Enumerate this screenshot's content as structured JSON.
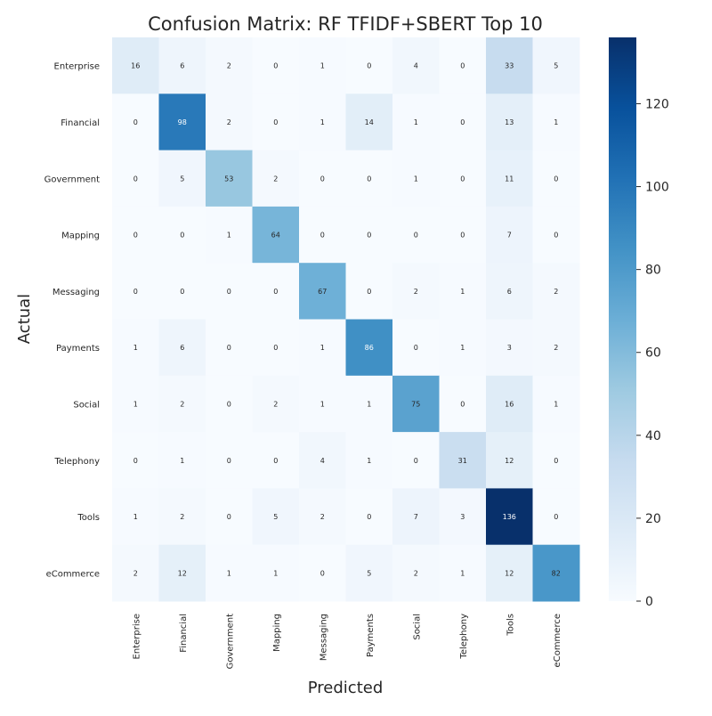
{
  "chart_data": {
    "type": "heatmap",
    "title": "Confusion Matrix: RF TFIDF+SBERT Top 10",
    "xlabel": "Predicted",
    "ylabel": "Actual",
    "x_categories": [
      "Enterprise",
      "Financial",
      "Government",
      "Mapping",
      "Messaging",
      "Payments",
      "Social",
      "Telephony",
      "Tools",
      "eCommerce"
    ],
    "y_categories": [
      "Enterprise",
      "Financial",
      "Government",
      "Mapping",
      "Messaging",
      "Payments",
      "Social",
      "Telephony",
      "Tools",
      "eCommerce"
    ],
    "values": [
      [
        16,
        6,
        2,
        0,
        1,
        0,
        4,
        0,
        33,
        5
      ],
      [
        0,
        98,
        2,
        0,
        1,
        14,
        1,
        0,
        13,
        1
      ],
      [
        0,
        5,
        53,
        2,
        0,
        0,
        1,
        0,
        11,
        0
      ],
      [
        0,
        0,
        1,
        64,
        0,
        0,
        0,
        0,
        7,
        0
      ],
      [
        0,
        0,
        0,
        0,
        67,
        0,
        2,
        1,
        6,
        2
      ],
      [
        1,
        6,
        0,
        0,
        1,
        86,
        0,
        1,
        3,
        2
      ],
      [
        1,
        2,
        0,
        2,
        1,
        1,
        75,
        0,
        16,
        1
      ],
      [
        0,
        1,
        0,
        0,
        4,
        1,
        0,
        31,
        12,
        0
      ],
      [
        1,
        2,
        0,
        5,
        2,
        0,
        7,
        3,
        136,
        0
      ],
      [
        2,
        12,
        1,
        1,
        0,
        5,
        2,
        1,
        12,
        82
      ]
    ],
    "colormap": "Blues",
    "vmin": 0,
    "vmax": 136,
    "colorbar_ticks": [
      0,
      20,
      40,
      60,
      80,
      100,
      120
    ]
  }
}
